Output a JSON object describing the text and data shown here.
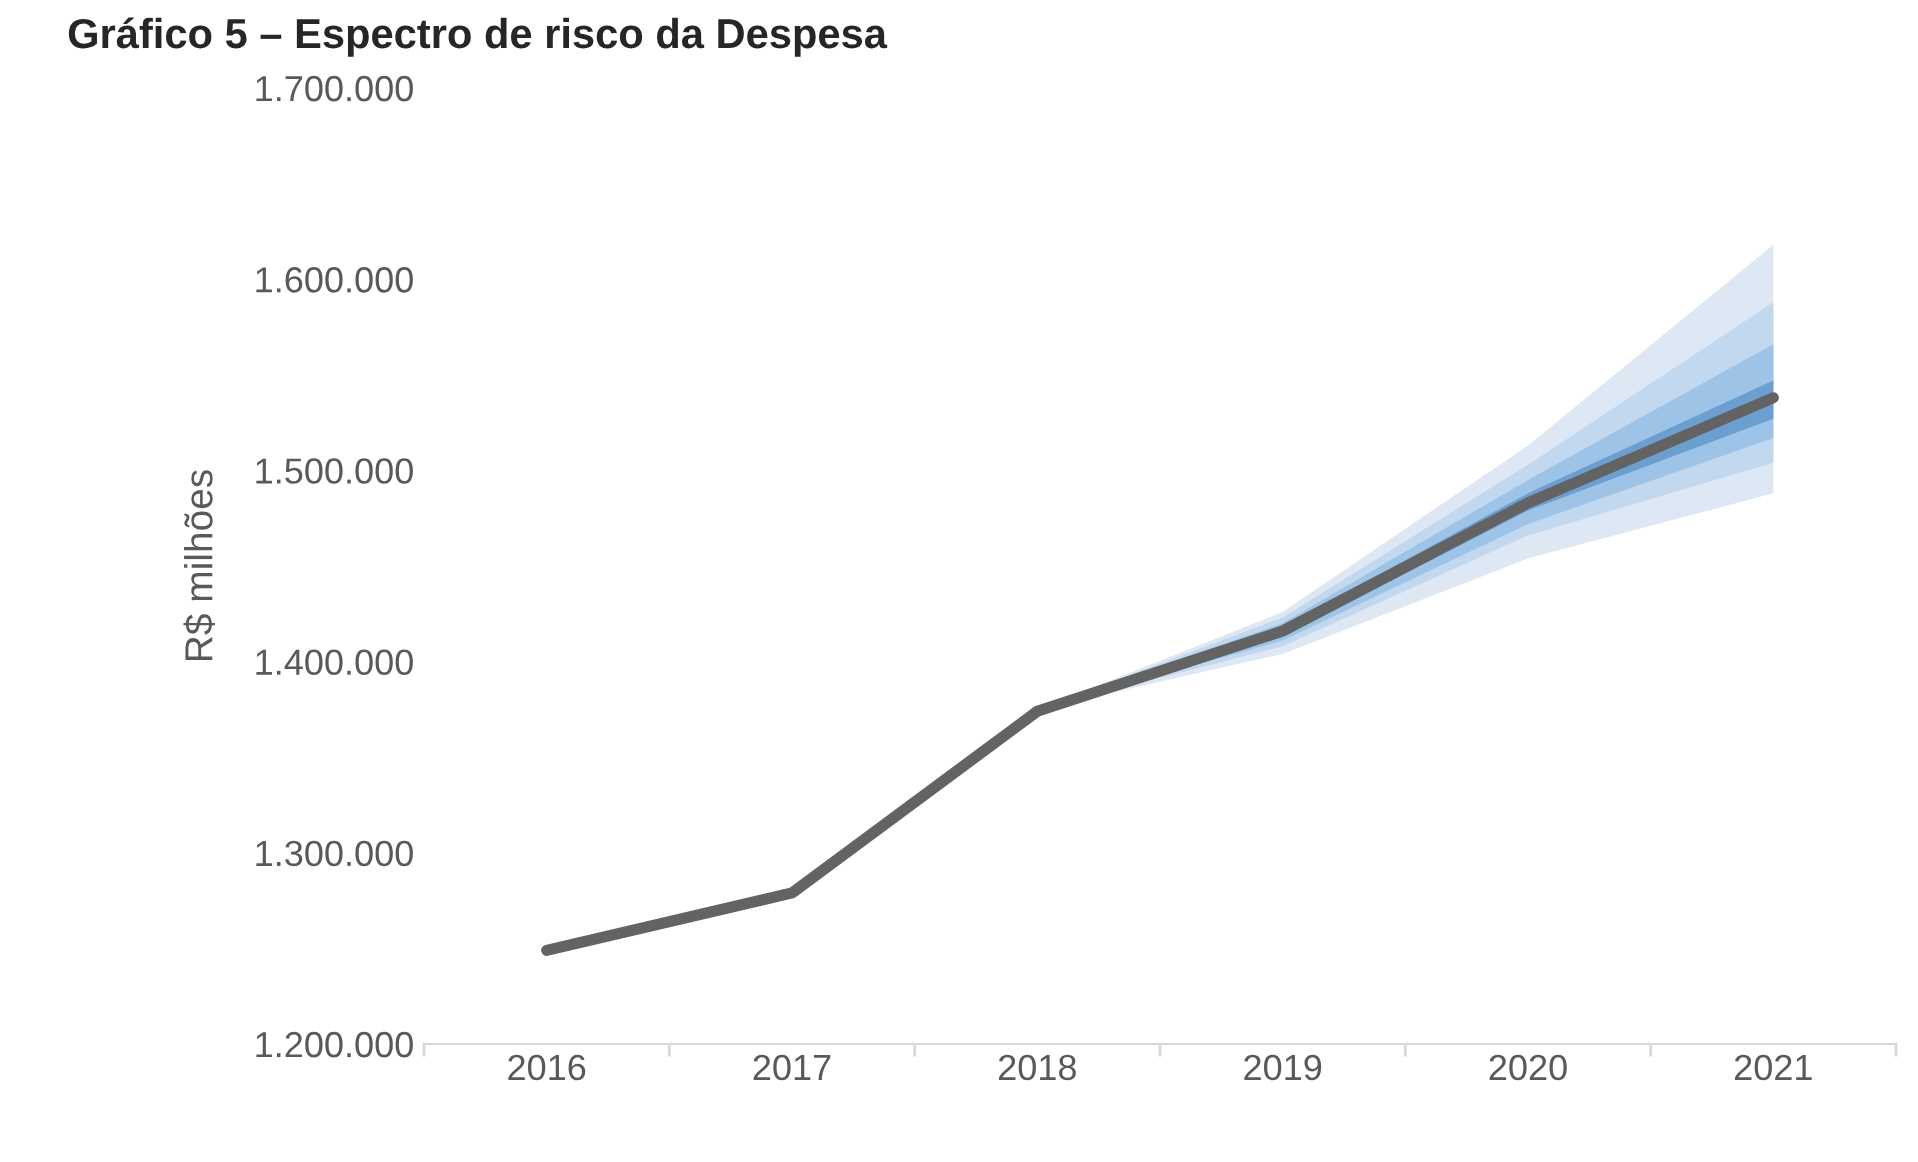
{
  "chart_data": {
    "type": "line",
    "title": "Gráfico 5 – Espectro de risco da Despesa",
    "ylabel": "R$ milhões",
    "categories": [
      "2016",
      "2017",
      "2018",
      "2019",
      "2020",
      "2021"
    ],
    "series": [
      {
        "type": "area",
        "color": "#dee8f4",
        "values": [
          null,
          null,
          null,
          null,
          null,
          null
        ],
        "lower": [
          null,
          null,
          1375000,
          1404000,
          1454000,
          1488000
        ],
        "upper": [
          null,
          null,
          1375000,
          1426000,
          1513000,
          1618000
        ]
      },
      {
        "type": "area",
        "color": "#c2d8ee",
        "values": [
          null,
          null,
          null,
          null,
          null,
          null
        ],
        "lower": [
          null,
          null,
          1375000,
          1408000,
          1466000,
          1504000
        ],
        "upper": [
          null,
          null,
          1375000,
          1423000,
          1503000,
          1588000
        ]
      },
      {
        "type": "area",
        "color": "#9dc3e6",
        "values": [
          null,
          null,
          null,
          null,
          null,
          null
        ],
        "lower": [
          null,
          null,
          1375000,
          1411000,
          1472000,
          1517000
        ],
        "upper": [
          null,
          null,
          1375000,
          1420000,
          1495000,
          1566000
        ]
      },
      {
        "type": "area",
        "color": "#6a9fd0",
        "values": [
          null,
          null,
          null,
          null,
          null,
          null
        ],
        "lower": [
          null,
          null,
          1375000,
          1413000,
          1479000,
          1527000
        ],
        "upper": [
          null,
          null,
          1375000,
          1418000,
          1488000,
          1547000
        ]
      },
      {
        "type": "line",
        "color": "#636363",
        "values": [
          1249000,
          1279000,
          1374000,
          1416000,
          1483000,
          1538000
        ]
      }
    ],
    "ylim": [
      1200000,
      1700000
    ],
    "yticks": [
      {
        "value": 1200000,
        "label": "1.200.000"
      },
      {
        "value": 1300000,
        "label": "1.300.000"
      },
      {
        "value": 1400000,
        "label": "1.400.000"
      },
      {
        "value": 1500000,
        "label": "1.500.000"
      },
      {
        "value": 1600000,
        "label": "1.600.000"
      },
      {
        "value": 1700000,
        "label": "1.700.000"
      }
    ],
    "grid": false,
    "legend": false
  }
}
